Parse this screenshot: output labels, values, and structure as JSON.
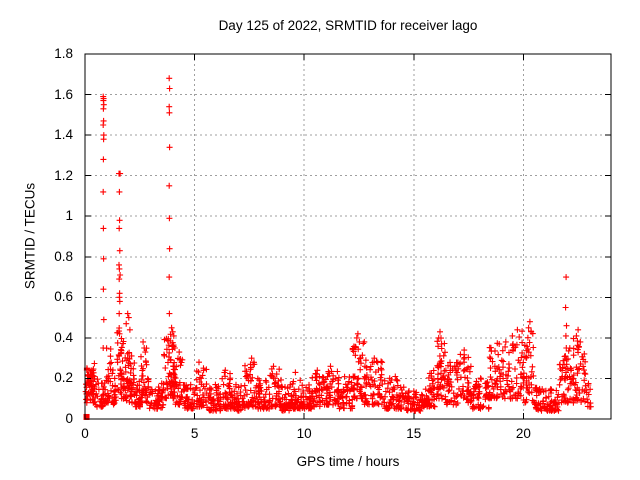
{
  "chart_data": {
    "type": "scatter",
    "title": "Day 125 of 2022, SRMTID for receiver lago",
    "xlabel": "GPS time / hours",
    "ylabel": "SRMTID / TECUs",
    "xlim": [
      0,
      24
    ],
    "ylim": [
      0,
      1.8
    ],
    "xticks": [
      0,
      5,
      10,
      15,
      20
    ],
    "xtick_labels": [
      "0",
      "5",
      "10",
      "15",
      "20"
    ],
    "yticks": [
      0,
      0.2,
      0.4,
      0.6,
      0.8,
      1,
      1.2,
      1.4,
      1.6,
      1.8
    ],
    "ytick_labels": [
      "0",
      "0.2",
      "0.4",
      "0.6",
      "0.8",
      "1",
      "1.2",
      "1.4",
      "1.6",
      "1.8"
    ],
    "grid": true,
    "legend": "none",
    "marker": {
      "glyph": "plus",
      "color": "#ff0000",
      "size": 7
    },
    "origin_point": {
      "x": 0.07,
      "y": 0.01,
      "glyph": "filled-square"
    },
    "spike_points": [
      [
        0.83,
        1.59
      ],
      [
        0.85,
        1.58
      ],
      [
        0.84,
        1.57
      ],
      [
        0.86,
        1.55
      ],
      [
        0.84,
        1.53
      ],
      [
        0.85,
        1.47
      ],
      [
        0.83,
        1.45
      ],
      [
        0.86,
        1.4
      ],
      [
        0.85,
        1.38
      ],
      [
        0.84,
        1.28
      ],
      [
        0.83,
        1.12
      ],
      [
        0.84,
        0.94
      ],
      [
        0.85,
        0.79
      ],
      [
        0.84,
        0.64
      ],
      [
        0.86,
        0.49
      ],
      [
        0.83,
        0.35
      ],
      [
        1.55,
        1.21
      ],
      [
        1.6,
        1.21
      ],
      [
        1.57,
        1.12
      ],
      [
        1.58,
        0.98
      ],
      [
        1.56,
        0.94
      ],
      [
        1.59,
        0.83
      ],
      [
        1.55,
        0.76
      ],
      [
        1.57,
        0.74
      ],
      [
        1.6,
        0.71
      ],
      [
        1.56,
        0.69
      ],
      [
        1.58,
        0.62
      ],
      [
        1.57,
        0.6
      ],
      [
        1.59,
        0.58
      ],
      [
        1.56,
        0.52
      ],
      [
        3.84,
        1.68
      ],
      [
        3.86,
        1.63
      ],
      [
        3.84,
        1.54
      ],
      [
        3.85,
        1.51
      ],
      [
        3.86,
        1.34
      ],
      [
        3.84,
        1.15
      ],
      [
        3.85,
        0.99
      ],
      [
        3.86,
        0.84
      ],
      [
        3.84,
        0.7
      ],
      [
        3.85,
        0.52
      ],
      [
        3.95,
        0.45
      ],
      [
        4.0,
        0.43
      ],
      [
        4.05,
        0.41
      ],
      [
        4.1,
        0.35
      ],
      [
        4.3,
        0.33
      ],
      [
        21.95,
        0.7
      ],
      [
        21.93,
        0.55
      ],
      [
        21.97,
        0.46
      ],
      [
        21.94,
        0.41
      ],
      [
        21.96,
        0.35
      ],
      [
        21.92,
        0.31
      ],
      [
        21.98,
        0.27
      ],
      [
        21.95,
        0.23
      ]
    ],
    "peak_points": [
      [
        1.88,
        0.47
      ],
      [
        1.95,
        0.52
      ],
      [
        2.0,
        0.5
      ],
      [
        2.05,
        0.44
      ],
      [
        2.65,
        0.38
      ],
      [
        2.7,
        0.35
      ],
      [
        2.75,
        0.33
      ],
      [
        5.2,
        0.28
      ],
      [
        6.4,
        0.24
      ],
      [
        7.55,
        0.27
      ],
      [
        7.6,
        0.3
      ],
      [
        8.6,
        0.26
      ],
      [
        9.6,
        0.23
      ],
      [
        10.6,
        0.24
      ],
      [
        11.2,
        0.26
      ],
      [
        12.4,
        0.4
      ],
      [
        12.45,
        0.42
      ],
      [
        12.52,
        0.38
      ],
      [
        13.2,
        0.3
      ],
      [
        16.14,
        0.4
      ],
      [
        16.2,
        0.43
      ],
      [
        16.27,
        0.37
      ],
      [
        17.3,
        0.34
      ],
      [
        18.9,
        0.37
      ],
      [
        19.2,
        0.38
      ],
      [
        19.5,
        0.41
      ],
      [
        20.24,
        0.45
      ],
      [
        20.3,
        0.48
      ],
      [
        20.36,
        0.43
      ],
      [
        22.42,
        0.41
      ],
      [
        22.5,
        0.44
      ],
      [
        22.6,
        0.38
      ]
    ],
    "density_bands": [
      {
        "t": [
          0.02,
          0.45
        ],
        "y": [
          0.08,
          0.28
        ],
        "n": 40
      },
      {
        "t": [
          0.1,
          0.4
        ],
        "y": [
          0.12,
          0.24
        ],
        "n": 25
      },
      {
        "t": [
          0.45,
          0.95
        ],
        "y": [
          0.06,
          0.2
        ],
        "n": 35
      },
      {
        "t": [
          0.95,
          1.3
        ],
        "y": [
          0.08,
          0.35
        ],
        "n": 30
      },
      {
        "t": [
          1.3,
          1.45
        ],
        "y": [
          0.07,
          0.22
        ],
        "n": 15
      },
      {
        "t": [
          1.45,
          1.8
        ],
        "y": [
          0.1,
          0.45
        ],
        "n": 45
      },
      {
        "t": [
          1.8,
          2.25
        ],
        "y": [
          0.08,
          0.36
        ],
        "n": 50
      },
      {
        "t": [
          2.25,
          2.55
        ],
        "y": [
          0.06,
          0.2
        ],
        "n": 28
      },
      {
        "t": [
          2.55,
          2.9
        ],
        "y": [
          0.08,
          0.36
        ],
        "n": 35
      },
      {
        "t": [
          2.9,
          3.6
        ],
        "y": [
          0.05,
          0.18
        ],
        "n": 50
      },
      {
        "t": [
          3.6,
          4.05
        ],
        "y": [
          0.1,
          0.42
        ],
        "n": 55
      },
      {
        "t": [
          4.05,
          4.5
        ],
        "y": [
          0.07,
          0.3
        ],
        "n": 40
      },
      {
        "t": [
          4.5,
          5.05
        ],
        "y": [
          0.05,
          0.17
        ],
        "n": 45
      },
      {
        "t": [
          5.05,
          5.55
        ],
        "y": [
          0.06,
          0.26
        ],
        "n": 40
      },
      {
        "t": [
          5.55,
          6.2
        ],
        "y": [
          0.04,
          0.17
        ],
        "n": 50
      },
      {
        "t": [
          6.2,
          6.65
        ],
        "y": [
          0.05,
          0.23
        ],
        "n": 38
      },
      {
        "t": [
          6.65,
          7.3
        ],
        "y": [
          0.04,
          0.17
        ],
        "n": 50
      },
      {
        "t": [
          7.3,
          7.85
        ],
        "y": [
          0.06,
          0.28
        ],
        "n": 45
      },
      {
        "t": [
          7.85,
          8.4
        ],
        "y": [
          0.05,
          0.2
        ],
        "n": 45
      },
      {
        "t": [
          8.4,
          8.95
        ],
        "y": [
          0.06,
          0.25
        ],
        "n": 45
      },
      {
        "t": [
          8.95,
          9.45
        ],
        "y": [
          0.04,
          0.17
        ],
        "n": 40
      },
      {
        "t": [
          9.45,
          9.95
        ],
        "y": [
          0.05,
          0.22
        ],
        "n": 40
      },
      {
        "t": [
          9.95,
          10.35
        ],
        "y": [
          0.05,
          0.17
        ],
        "n": 32
      },
      {
        "t": [
          10.35,
          10.85
        ],
        "y": [
          0.06,
          0.23
        ],
        "n": 40
      },
      {
        "t": [
          10.85,
          11.55
        ],
        "y": [
          0.07,
          0.25
        ],
        "n": 55
      },
      {
        "t": [
          11.55,
          12.2
        ],
        "y": [
          0.05,
          0.21
        ],
        "n": 50
      },
      {
        "t": [
          12.2,
          12.75
        ],
        "y": [
          0.1,
          0.4
        ],
        "n": 50
      },
      {
        "t": [
          12.75,
          13.65
        ],
        "y": [
          0.07,
          0.29
        ],
        "n": 65
      },
      {
        "t": [
          13.65,
          14.65
        ],
        "y": [
          0.05,
          0.21
        ],
        "n": 70
      },
      {
        "t": [
          14.65,
          15.45
        ],
        "y": [
          0.04,
          0.14
        ],
        "n": 55
      },
      {
        "t": [
          15.45,
          16.05
        ],
        "y": [
          0.06,
          0.24
        ],
        "n": 45
      },
      {
        "t": [
          16.05,
          16.45
        ],
        "y": [
          0.1,
          0.4
        ],
        "n": 40
      },
      {
        "t": [
          16.45,
          17.05
        ],
        "y": [
          0.07,
          0.28
        ],
        "n": 45
      },
      {
        "t": [
          17.05,
          17.65
        ],
        "y": [
          0.08,
          0.32
        ],
        "n": 45
      },
      {
        "t": [
          17.65,
          18.45
        ],
        "y": [
          0.05,
          0.21
        ],
        "n": 58
      },
      {
        "t": [
          18.45,
          19.65
        ],
        "y": [
          0.1,
          0.38
        ],
        "n": 85
      },
      {
        "t": [
          19.65,
          20.5
        ],
        "y": [
          0.08,
          0.44
        ],
        "n": 65
      },
      {
        "t": [
          20.5,
          21.65
        ],
        "y": [
          0.04,
          0.16
        ],
        "n": 80
      },
      {
        "t": [
          21.65,
          22.25
        ],
        "y": [
          0.08,
          0.38
        ],
        "n": 45
      },
      {
        "t": [
          22.25,
          22.85
        ],
        "y": [
          0.08,
          0.42
        ],
        "n": 50
      },
      {
        "t": [
          22.85,
          23.1
        ],
        "y": [
          0.06,
          0.2
        ],
        "n": 12
      }
    ],
    "colors": {
      "marker": "#ff0000",
      "grid": "#9f9f9f",
      "border": "#000000",
      "text": "#000000",
      "background": "#ffffff"
    }
  }
}
